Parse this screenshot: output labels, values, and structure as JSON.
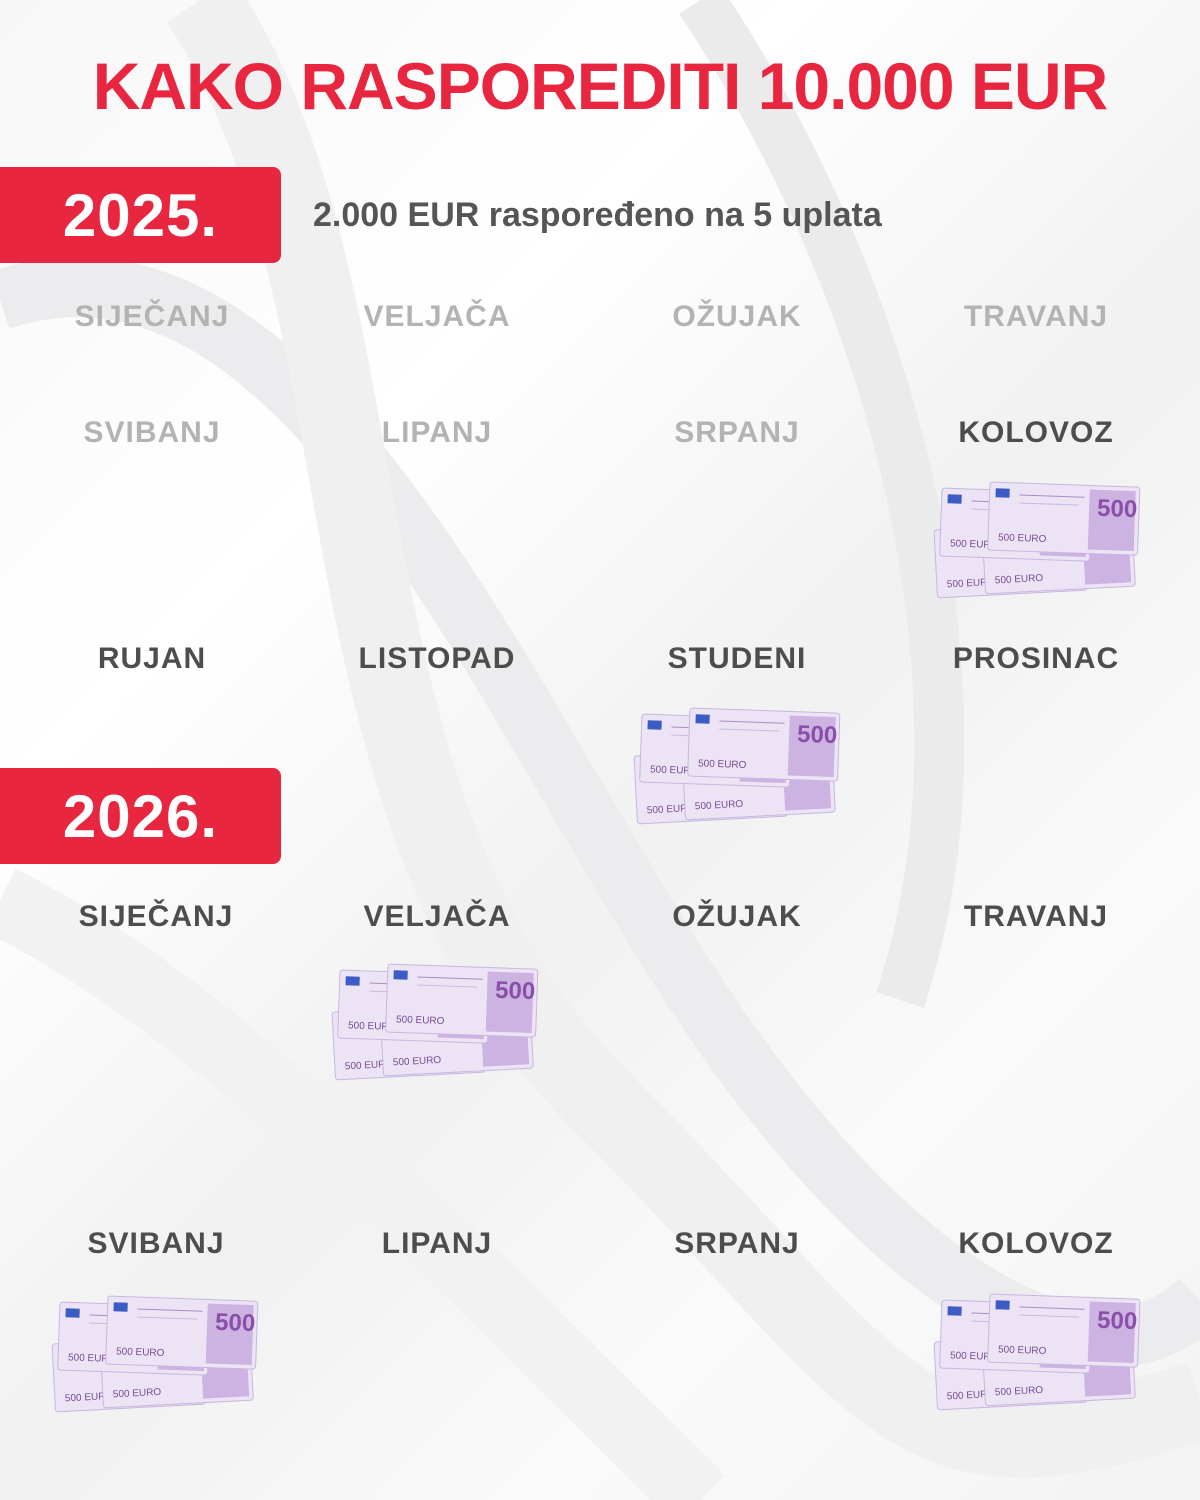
{
  "title": "KAKO RASPOREDITI 10.000 EUR",
  "accent_color": "#e8263f",
  "year_2025": {
    "label": "2025.",
    "subtitle": "2.000 EUR raspoređeno na 5 uplata",
    "months": [
      {
        "label": "SIJEČANJ",
        "state": "past"
      },
      {
        "label": "VELJAČA",
        "state": "past"
      },
      {
        "label": "OŽUJAK",
        "state": "past"
      },
      {
        "label": "TRAVANJ",
        "state": "past"
      },
      {
        "label": "SVIBANJ",
        "state": "past"
      },
      {
        "label": "LIPANJ",
        "state": "past"
      },
      {
        "label": "SRPANJ",
        "state": "past"
      },
      {
        "label": "KOLOVOZ",
        "state": "active",
        "payment": true
      },
      {
        "label": "RUJAN",
        "state": "active"
      },
      {
        "label": "LISTOPAD",
        "state": "active"
      },
      {
        "label": "STUDENI",
        "state": "active",
        "payment": true
      },
      {
        "label": "PROSINAC",
        "state": "active"
      }
    ]
  },
  "year_2026": {
    "label": "2026.",
    "months": [
      {
        "label": "SIJEČANJ",
        "state": "active"
      },
      {
        "label": "VELJAČA",
        "state": "active",
        "payment": true
      },
      {
        "label": "OŽUJAK",
        "state": "active"
      },
      {
        "label": "TRAVANJ",
        "state": "active"
      },
      {
        "label": "SVIBANJ",
        "state": "active",
        "payment": true
      },
      {
        "label": "LIPANJ",
        "state": "active"
      },
      {
        "label": "SRPANJ",
        "state": "active"
      },
      {
        "label": "KOLOVOZ",
        "state": "active",
        "payment": true
      }
    ]
  },
  "banknote": {
    "denomination": "500",
    "currency_text": "EURO",
    "icon": "euro-banknote-stack-icon"
  }
}
